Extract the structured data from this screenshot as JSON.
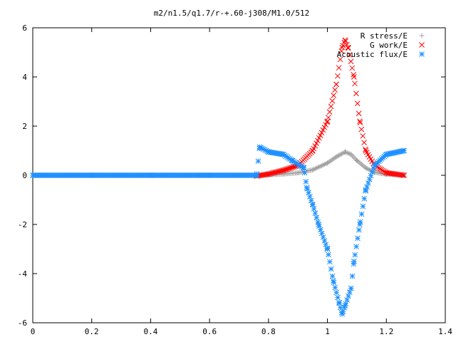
{
  "chart_data": {
    "type": "scatter",
    "title": "m2/n1.5/q1.7/r-+.60-j308/M1.0/512",
    "xlim": [
      0,
      1.4
    ],
    "ylim": [
      -6,
      6
    ],
    "x_ticks": [
      "0",
      "0.2",
      "0.4",
      "0.6",
      "0.8",
      "1",
      "1.2",
      "1.4"
    ],
    "y_ticks": [
      "-6",
      "-4",
      "-2",
      "0",
      "2",
      "4",
      "6"
    ],
    "grid": false,
    "legend_position": "top-right",
    "series": [
      {
        "name": "R stress/E",
        "marker": "plus",
        "color": "#a0a0a0",
        "points": [
          [
            0.0,
            0.0
          ],
          [
            0.2,
            0.0
          ],
          [
            0.4,
            0.0
          ],
          [
            0.6,
            0.0
          ],
          [
            0.76,
            0.0
          ],
          [
            0.8,
            0.02
          ],
          [
            0.85,
            0.05
          ],
          [
            0.9,
            0.1
          ],
          [
            0.95,
            0.22
          ],
          [
            1.0,
            0.5
          ],
          [
            1.03,
            0.75
          ],
          [
            1.06,
            0.95
          ],
          [
            1.08,
            0.85
          ],
          [
            1.1,
            0.6
          ],
          [
            1.13,
            0.3
          ],
          [
            1.16,
            0.12
          ],
          [
            1.2,
            0.04
          ],
          [
            1.26,
            0.0
          ]
        ]
      },
      {
        "name": "G work/E",
        "marker": "cross",
        "color": "#ff0000",
        "points": [
          [
            0.76,
            -0.03
          ],
          [
            0.8,
            0.05
          ],
          [
            0.85,
            0.2
          ],
          [
            0.9,
            0.4
          ],
          [
            0.95,
            1.0
          ],
          [
            1.0,
            2.2
          ],
          [
            1.03,
            3.7
          ],
          [
            1.05,
            5.2
          ],
          [
            1.06,
            5.5
          ],
          [
            1.07,
            5.2
          ],
          [
            1.09,
            4.0
          ],
          [
            1.11,
            2.2
          ],
          [
            1.13,
            1.0
          ],
          [
            1.16,
            0.4
          ],
          [
            1.2,
            0.1
          ],
          [
            1.26,
            0.0
          ]
        ]
      },
      {
        "name": "Acoustic flux/E",
        "marker": "star",
        "color": "#1e90ff",
        "points": [
          [
            0.0,
            0.0
          ],
          [
            0.2,
            0.0
          ],
          [
            0.4,
            0.0
          ],
          [
            0.6,
            0.0
          ],
          [
            0.76,
            0.0
          ],
          [
            0.77,
            1.15
          ],
          [
            0.8,
            0.95
          ],
          [
            0.85,
            0.85
          ],
          [
            0.88,
            0.6
          ],
          [
            0.92,
            0.3
          ],
          [
            0.93,
            -0.5
          ],
          [
            0.95,
            -1.2
          ],
          [
            0.97,
            -2.0
          ],
          [
            1.0,
            -3.0
          ],
          [
            1.02,
            -4.3
          ],
          [
            1.04,
            -5.2
          ],
          [
            1.05,
            -5.65
          ],
          [
            1.06,
            -5.3
          ],
          [
            1.08,
            -4.6
          ],
          [
            1.09,
            -3.5
          ],
          [
            1.11,
            -2.0
          ],
          [
            1.13,
            -0.6
          ],
          [
            1.16,
            0.4
          ],
          [
            1.2,
            0.85
          ],
          [
            1.26,
            1.0
          ]
        ]
      }
    ]
  }
}
